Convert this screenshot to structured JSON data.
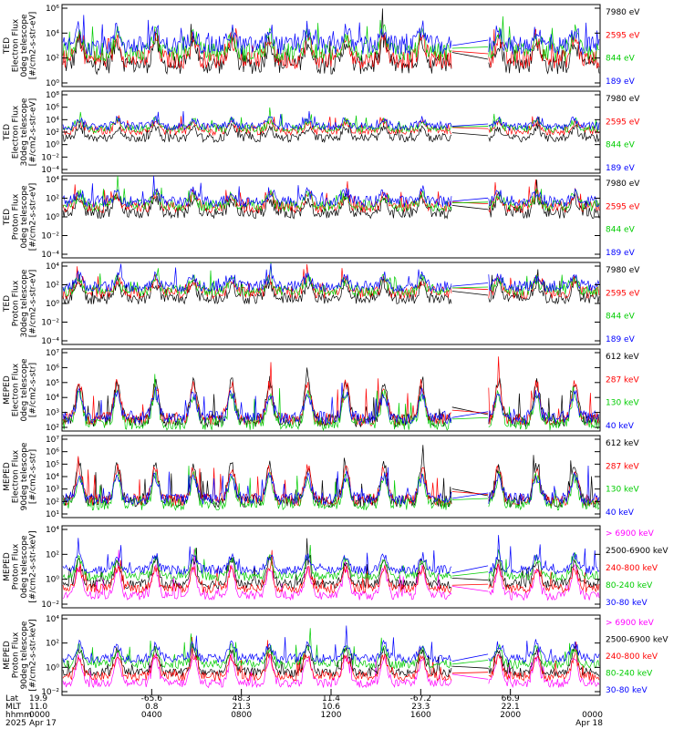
{
  "chart_data": [
    {
      "type": "line",
      "ylabel_lines": [
        "TED",
        "Electron Flux",
        "0deg telescope",
        "[#/cm2-s-str-eV]"
      ],
      "y_ticks": [
        "10⁶",
        "10⁴",
        "10²",
        "10⁰"
      ],
      "y_log_range": [
        0,
        6
      ],
      "series": [
        {
          "name": "7980 eV",
          "color": "#000000",
          "level": 1.6
        },
        {
          "name": "2595 eV",
          "color": "#ff0000",
          "level": 2.0
        },
        {
          "name": "844 eV",
          "color": "#00cc00",
          "level": 2.5
        },
        {
          "name": "189 eV",
          "color": "#0000ff",
          "level": 3.0
        }
      ]
    },
    {
      "type": "line",
      "ylabel_lines": [
        "TED",
        "Electron Flux",
        "30deg telescope",
        "[#/cm2-s-str-eV]"
      ],
      "y_ticks": [
        "10⁸",
        "10⁶",
        "10⁴",
        "10²",
        "10⁰",
        "10⁻²",
        "10⁻⁴"
      ],
      "y_log_range": [
        -5,
        9
      ],
      "series": [
        {
          "name": "7980 eV",
          "color": "#000000",
          "level": 1.0
        },
        {
          "name": "2595 eV",
          "color": "#ff0000",
          "level": 2.2
        },
        {
          "name": "844 eV",
          "color": "#00cc00",
          "level": 2.6
        },
        {
          "name": "189 eV",
          "color": "#0000ff",
          "level": 3.0
        }
      ]
    },
    {
      "type": "line",
      "ylabel_lines": [
        "TED",
        "Proton Flux",
        "0deg telescope",
        "[#/cm2-s-str-eV]"
      ],
      "y_ticks": [
        "10⁴",
        "10²",
        "10⁰",
        "10⁻²",
        "10⁻⁴"
      ],
      "y_log_range": [
        -5,
        5
      ],
      "series": [
        {
          "name": "7980 eV",
          "color": "#000000",
          "level": 0.5
        },
        {
          "name": "2595 eV",
          "color": "#ff0000",
          "level": 1.2
        },
        {
          "name": "844 eV",
          "color": "#00cc00",
          "level": 1.4
        },
        {
          "name": "189 eV",
          "color": "#0000ff",
          "level": 1.9
        }
      ]
    },
    {
      "type": "line",
      "ylabel_lines": [
        "TED",
        "Proton Flux",
        "30deg telescope",
        "[#/cm2-s-str-eV]"
      ],
      "y_ticks": [
        "10⁴",
        "10²",
        "10⁰",
        "10⁻²",
        "10⁻⁴"
      ],
      "y_log_range": [
        -5,
        5
      ],
      "series": [
        {
          "name": "7980 eV",
          "color": "#000000",
          "level": 0.6
        },
        {
          "name": "2595 eV",
          "color": "#ff0000",
          "level": 1.3
        },
        {
          "name": "844 eV",
          "color": "#00cc00",
          "level": 1.6
        },
        {
          "name": "189 eV",
          "color": "#0000ff",
          "level": 2.1
        }
      ]
    },
    {
      "type": "line",
      "ylabel_lines": [
        "MEPED",
        "Electron Flux",
        "0deg telescope",
        "[#/cm2-s-str]"
      ],
      "y_ticks": [
        "10⁷",
        "10⁶",
        "10⁵",
        "10⁴",
        "10³",
        "10²"
      ],
      "y_log_range": [
        1.5,
        7
      ],
      "series": [
        {
          "name": "612 keV",
          "color": "#000000",
          "level": 2.2
        },
        {
          "name": "287 keV",
          "color": "#ff0000",
          "level": 2.3
        },
        {
          "name": "130 keV",
          "color": "#00cc00",
          "level": 2.0
        },
        {
          "name": "40 keV",
          "color": "#0000ff",
          "level": 2.4
        }
      ]
    },
    {
      "type": "line",
      "ylabel_lines": [
        "MEPED",
        "Electron Flux",
        "90deg telescope",
        "[#/cm2-s-str]"
      ],
      "y_ticks": [
        "10⁷",
        "10⁶",
        "10⁵",
        "10⁴",
        "10³",
        "10²",
        "10¹"
      ],
      "y_log_range": [
        1,
        7
      ],
      "series": [
        {
          "name": "612 keV",
          "color": "#000000",
          "level": 2.2
        },
        {
          "name": "287 keV",
          "color": "#ff0000",
          "level": 2.3
        },
        {
          "name": "130 keV",
          "color": "#00cc00",
          "level": 2.0
        },
        {
          "name": "40 keV",
          "color": "#0000ff",
          "level": 2.4
        }
      ]
    },
    {
      "type": "line",
      "ylabel_lines": [
        "MEPED",
        "Proton Flux",
        "0deg telescope",
        "[#/cm2-s-str-keV]"
      ],
      "y_ticks": [
        "10⁴",
        "10²",
        "10⁰",
        "10⁻²"
      ],
      "y_log_range": [
        -2.5,
        5.5
      ],
      "series": [
        {
          "name": "> 6900 keV",
          "color": "#ff00ff",
          "level": -1.3
        },
        {
          "name": "2500-6900 keV",
          "color": "#000000",
          "level": -0.2
        },
        {
          "name": "240-800 keV",
          "color": "#ff0000",
          "level": -0.6
        },
        {
          "name": "80-240 keV",
          "color": "#00cc00",
          "level": 0.6
        },
        {
          "name": "30-80 keV",
          "color": "#0000ff",
          "level": 1.2
        }
      ]
    },
    {
      "type": "line",
      "ylabel_lines": [
        "MEPED",
        "Proton Flux",
        "90deg telescope",
        "[#/cm2-s-str-keV]"
      ],
      "y_ticks": [
        "10⁴",
        "10²",
        "10⁰",
        "10⁻²"
      ],
      "y_log_range": [
        -2.5,
        5.5
      ],
      "series": [
        {
          "name": "> 6900 keV",
          "color": "#ff00ff",
          "level": -1.3
        },
        {
          "name": "2500-6900 keV",
          "color": "#000000",
          "level": -0.2
        },
        {
          "name": "240-800 keV",
          "color": "#ff0000",
          "level": -0.6
        },
        {
          "name": "80-240 keV",
          "color": "#00cc00",
          "level": 0.6
        },
        {
          "name": "30-80 keV",
          "color": "#0000ff",
          "level": 1.2
        }
      ]
    }
  ],
  "time_axis": {
    "hours_range": [
      0,
      24
    ],
    "data_gap_hours": [
      17.4,
      19.0
    ],
    "tick_hours": [
      0,
      4,
      8,
      12,
      16,
      20,
      24
    ],
    "row_labels": [
      "Lat",
      "MLT",
      "hhmm",
      "2025"
    ],
    "columns": [
      {
        "hour": 0,
        "values": [
          "19.9",
          "11.0",
          "0000",
          "Apr 17"
        ]
      },
      {
        "hour": 4,
        "values": [
          "-65.6",
          "0.8",
          "0400",
          ""
        ]
      },
      {
        "hour": 8,
        "values": [
          "48.3",
          "21.3",
          "0800",
          ""
        ]
      },
      {
        "hour": 12,
        "values": [
          "11.4",
          "10.6",
          "1200",
          ""
        ]
      },
      {
        "hour": 16,
        "values": [
          "-67.2",
          "23.3",
          "1600",
          ""
        ]
      },
      {
        "hour": 20,
        "values": [
          "66.9",
          "22.1",
          "2000",
          ""
        ]
      },
      {
        "hour": 24,
        "values": [
          "",
          "",
          "0000",
          "Apr 18"
        ]
      }
    ]
  }
}
